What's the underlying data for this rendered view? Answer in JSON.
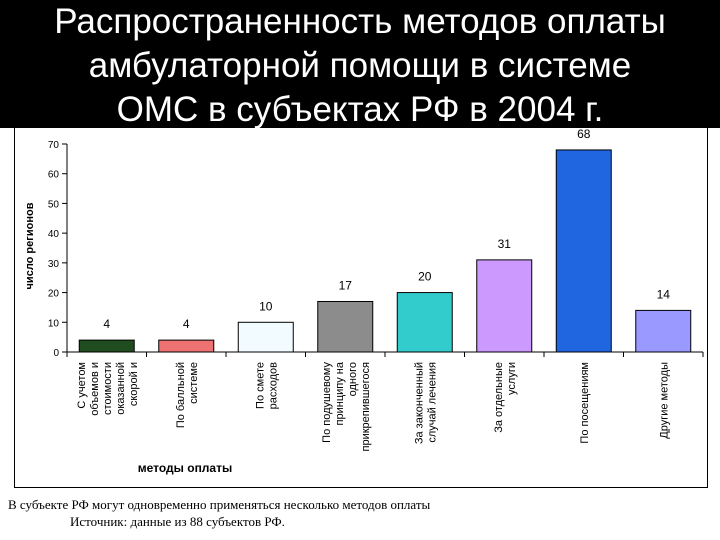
{
  "title": {
    "lines": [
      "Распространенность методов оплаты",
      "амбулаторной помощи в системе",
      "ОМС в субъектах РФ в 2004 г."
    ]
  },
  "chart_data": {
    "type": "bar",
    "ylabel": "число регионов",
    "xlabel": "методы оплаты",
    "ylim": [
      0,
      70
    ],
    "yticks": [
      0,
      10,
      20,
      30,
      40,
      50,
      60,
      70
    ],
    "grid": false,
    "legend": "none",
    "categories": [
      [
        "С учетом",
        "объемов и",
        "стоимости",
        "оказанной",
        "скорой и"
      ],
      [
        "По балльной",
        "системе"
      ],
      [
        "По смете",
        "расходов"
      ],
      [
        "По подушевому",
        "принципу на",
        "одного",
        "прикрепившегося"
      ],
      [
        "За законченный",
        "случай лечения"
      ],
      [
        "За отдельные",
        "услуги"
      ],
      [
        "По посещениям"
      ],
      [
        "Другие методы"
      ]
    ],
    "values": [
      4,
      4,
      10,
      17,
      20,
      31,
      68,
      14
    ],
    "colors": [
      "#1f4d1f",
      "#ee7272",
      "#f2fbff",
      "#8c8c8c",
      "#33cccc",
      "#cc99ff",
      "#1f66e0",
      "#9999ff"
    ]
  },
  "footnote": {
    "line1": "В субъекте РФ могут одновременно применяться несколько методов оплаты",
    "line2": "Источник: данные из 88 субъектов РФ."
  }
}
